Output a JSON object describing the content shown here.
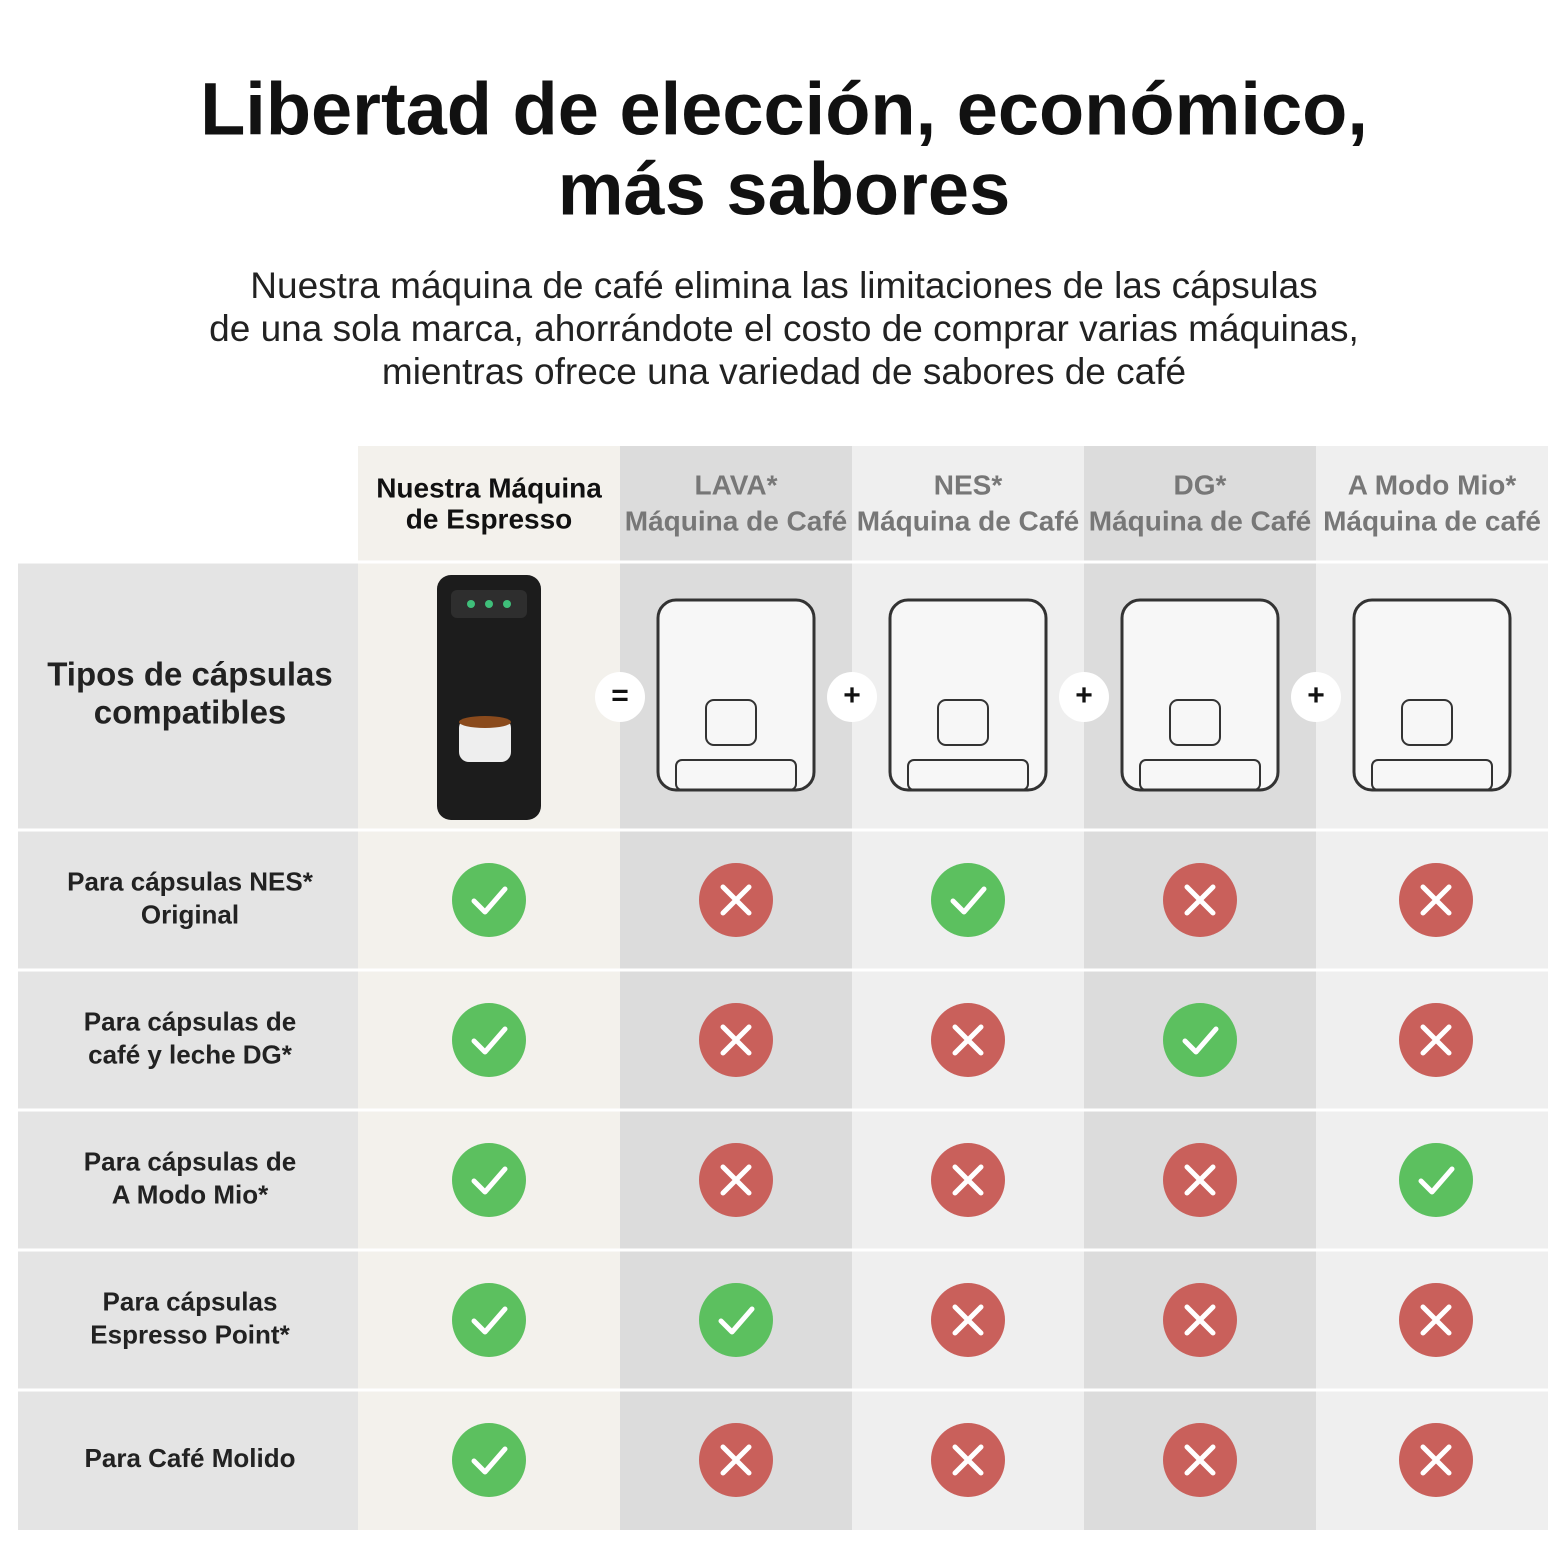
{
  "header": {
    "title_lines": [
      "Libertad de elección, económico,",
      "más sabores"
    ],
    "subtitle_lines": [
      "Nuestra máquina de café elimina las limitaciones de las cápsulas",
      "de una sola marca, ahorrándote el costo de comprar varias máquinas,",
      "mientras ofrece una variedad de sabores de café"
    ]
  },
  "table": {
    "columns": [
      {
        "lines": [
          "Nuestra Máquina",
          "de Espresso"
        ]
      },
      {
        "lines": [
          "LAVA*",
          "Máquina de Café"
        ]
      },
      {
        "lines": [
          "NES*",
          "Máquina de Café"
        ]
      },
      {
        "lines": [
          "DG*",
          "Máquina de Café"
        ]
      },
      {
        "lines": [
          "A Modo Mio*",
          "Máquina de café"
        ]
      }
    ],
    "image_row_label": [
      "Tipos de cápsulas",
      "compatibles"
    ],
    "operators": [
      "=",
      "+",
      "+",
      "+"
    ],
    "rows": [
      {
        "label": [
          "Para cápsulas NES*",
          "Original"
        ],
        "compatible": [
          true,
          false,
          true,
          false,
          false
        ]
      },
      {
        "label": [
          "Para cápsulas de",
          "café y leche DG*"
        ],
        "compatible": [
          true,
          false,
          false,
          true,
          false
        ]
      },
      {
        "label": [
          "Para cápsulas de",
          "A Modo Mio*"
        ],
        "compatible": [
          true,
          false,
          false,
          false,
          true
        ]
      },
      {
        "label": [
          "Para cápsulas",
          "Espresso Point*"
        ],
        "compatible": [
          true,
          true,
          false,
          false,
          false
        ]
      },
      {
        "label": [
          "Para Café Molido"
        ],
        "compatible": [
          true,
          false,
          false,
          false,
          false
        ]
      }
    ]
  }
}
